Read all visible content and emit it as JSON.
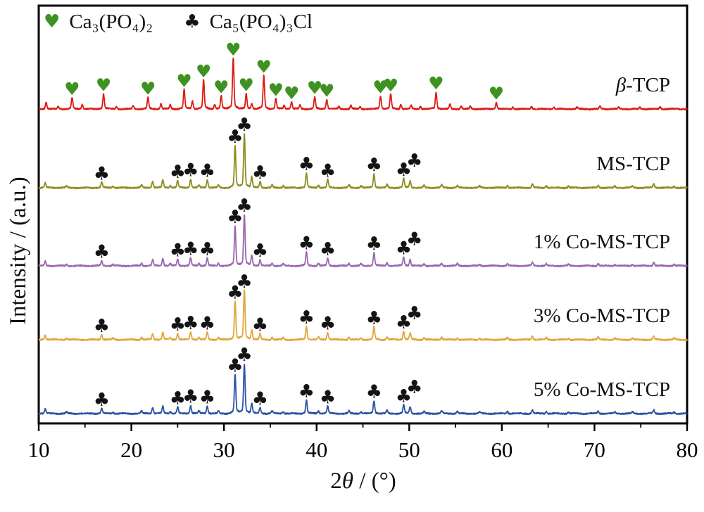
{
  "chart_data": {
    "type": "line",
    "subtype": "xrd-pattern-stack",
    "title": "",
    "xlabel": "2θ / (°)",
    "xlabel_parts": {
      "pre": "2",
      "theta": "θ",
      "post": " / (°)"
    },
    "ylabel": "Intensity / (a.u.)",
    "xlim": [
      10,
      80
    ],
    "x_ticks": [
      10,
      20,
      30,
      40,
      50,
      60,
      70,
      80
    ],
    "x_minor_tick_step": 5,
    "grid": false,
    "legend_position": "top-left-inside",
    "legend": [
      {
        "symbol": "heart",
        "symbol_char": "♥",
        "color": "#3e9222",
        "label": "Ca₃(PO₄)₂"
      },
      {
        "symbol": "club",
        "symbol_char": "♣",
        "color": "#141414",
        "label": "Ca₅(PO₄)₃Cl"
      }
    ],
    "peak_sets": {
      "beta_tcp": [
        [
          10.8,
          0.13
        ],
        [
          12.1,
          0.05
        ],
        [
          13.6,
          0.22
        ],
        [
          14.7,
          0.09
        ],
        [
          17.0,
          0.3
        ],
        [
          18.4,
          0.05
        ],
        [
          20.2,
          0.06
        ],
        [
          21.8,
          0.23
        ],
        [
          23.2,
          0.1
        ],
        [
          24.2,
          0.08
        ],
        [
          25.7,
          0.38
        ],
        [
          26.6,
          0.16
        ],
        [
          27.8,
          0.57
        ],
        [
          29.0,
          0.09
        ],
        [
          29.7,
          0.26
        ],
        [
          31.0,
          1.0
        ],
        [
          32.4,
          0.3
        ],
        [
          33.0,
          0.1
        ],
        [
          34.3,
          0.66
        ],
        [
          35.6,
          0.2
        ],
        [
          36.5,
          0.07
        ],
        [
          37.3,
          0.14
        ],
        [
          38.2,
          0.07
        ],
        [
          39.8,
          0.24
        ],
        [
          41.1,
          0.19
        ],
        [
          42.4,
          0.05
        ],
        [
          43.7,
          0.07
        ],
        [
          44.7,
          0.05
        ],
        [
          46.9,
          0.26
        ],
        [
          48.0,
          0.29
        ],
        [
          49.1,
          0.09
        ],
        [
          50.2,
          0.07
        ],
        [
          51.2,
          0.05
        ],
        [
          52.9,
          0.33
        ],
        [
          54.4,
          0.09
        ],
        [
          55.6,
          0.06
        ],
        [
          56.6,
          0.05
        ],
        [
          59.4,
          0.13
        ],
        [
          61.2,
          0.04
        ],
        [
          63.2,
          0.05
        ],
        [
          65.6,
          0.04
        ],
        [
          68.1,
          0.03
        ],
        [
          70.6,
          0.05
        ],
        [
          72.6,
          0.03
        ],
        [
          74.9,
          0.03
        ],
        [
          77.1,
          0.04
        ]
      ],
      "chlorapatite": [
        [
          10.7,
          0.09
        ],
        [
          13.0,
          0.03
        ],
        [
          16.8,
          0.1
        ],
        [
          18.0,
          0.03
        ],
        [
          21.1,
          0.05
        ],
        [
          22.3,
          0.12
        ],
        [
          23.4,
          0.15
        ],
        [
          24.2,
          0.04
        ],
        [
          25.0,
          0.13
        ],
        [
          26.4,
          0.16
        ],
        [
          27.3,
          0.05
        ],
        [
          28.2,
          0.15
        ],
        [
          29.4,
          0.05
        ],
        [
          31.2,
          0.78
        ],
        [
          32.2,
          1.0
        ],
        [
          33.0,
          0.2
        ],
        [
          33.9,
          0.12
        ],
        [
          35.2,
          0.05
        ],
        [
          36.4,
          0.04
        ],
        [
          38.9,
          0.27
        ],
        [
          40.2,
          0.05
        ],
        [
          41.2,
          0.15
        ],
        [
          43.5,
          0.05
        ],
        [
          44.8,
          0.04
        ],
        [
          46.2,
          0.26
        ],
        [
          47.6,
          0.06
        ],
        [
          49.4,
          0.17
        ],
        [
          50.1,
          0.13
        ],
        [
          51.6,
          0.04
        ],
        [
          53.5,
          0.05
        ],
        [
          55.2,
          0.04
        ],
        [
          57.6,
          0.03
        ],
        [
          60.6,
          0.04
        ],
        [
          63.3,
          0.07
        ],
        [
          64.8,
          0.04
        ],
        [
          67.2,
          0.03
        ],
        [
          70.4,
          0.05
        ],
        [
          72.2,
          0.03
        ],
        [
          74.1,
          0.03
        ],
        [
          76.4,
          0.07
        ],
        [
          78.6,
          0.03
        ]
      ]
    },
    "series": [
      {
        "name": "β-TCP",
        "label_italic": "β",
        "label_rest": "-TCP",
        "color": "#de1b14",
        "marker": "heart",
        "peak_set": "beta_tcp",
        "markers": [
          [
            13.6,
            0
          ],
          [
            17.0,
            0
          ],
          [
            21.8,
            0
          ],
          [
            25.7,
            0
          ],
          [
            27.8,
            0
          ],
          [
            29.7,
            0
          ],
          [
            31.0,
            0
          ],
          [
            32.4,
            0
          ],
          [
            34.3,
            0
          ],
          [
            35.6,
            0
          ],
          [
            37.3,
            0
          ],
          [
            39.8,
            0
          ],
          [
            41.1,
            0
          ],
          [
            46.9,
            0
          ],
          [
            48.0,
            0
          ],
          [
            52.9,
            0
          ],
          [
            59.4,
            0
          ]
        ]
      },
      {
        "name": "MS-TCP",
        "label_italic": "",
        "label_rest": "MS-TCP",
        "color": "#8f8d1f",
        "marker": "club",
        "peak_set": "chlorapatite",
        "markers": [
          [
            16.8,
            0
          ],
          [
            25.0,
            0
          ],
          [
            26.4,
            0
          ],
          [
            28.2,
            0
          ],
          [
            31.2,
            0
          ],
          [
            32.2,
            0
          ],
          [
            33.9,
            0
          ],
          [
            38.9,
            0
          ],
          [
            41.2,
            0
          ],
          [
            46.2,
            0
          ],
          [
            49.4,
            0
          ],
          [
            50.1,
            16
          ]
        ]
      },
      {
        "name": "1% Co-MS-TCP",
        "label_italic": "",
        "label_rest": "1% Co-MS-TCP",
        "color": "#9a68ae",
        "marker": "club",
        "peak_set": "chlorapatite",
        "markers": [
          [
            16.8,
            0
          ],
          [
            25.0,
            0
          ],
          [
            26.4,
            0
          ],
          [
            28.2,
            0
          ],
          [
            31.2,
            0
          ],
          [
            32.2,
            0
          ],
          [
            33.9,
            0
          ],
          [
            38.9,
            0
          ],
          [
            41.2,
            0
          ],
          [
            46.2,
            0
          ],
          [
            49.4,
            0
          ],
          [
            50.1,
            16
          ]
        ]
      },
      {
        "name": "3% Co-MS-TCP",
        "label_italic": "",
        "label_rest": "3% Co-MS-TCP",
        "color": "#e2a63d",
        "marker": "club",
        "peak_set": "chlorapatite",
        "markers": [
          [
            16.8,
            0
          ],
          [
            25.0,
            0
          ],
          [
            26.4,
            0
          ],
          [
            28.2,
            0
          ],
          [
            31.2,
            0
          ],
          [
            32.2,
            0
          ],
          [
            33.9,
            0
          ],
          [
            38.9,
            0
          ],
          [
            41.2,
            0
          ],
          [
            46.2,
            0
          ],
          [
            49.4,
            0
          ],
          [
            50.1,
            16
          ]
        ]
      },
      {
        "name": "5% Co-MS-TCP",
        "label_italic": "",
        "label_rest": "5% Co-MS-TCP",
        "color": "#2b55a7",
        "marker": "club",
        "peak_set": "chlorapatite",
        "markers": [
          [
            16.8,
            0
          ],
          [
            25.0,
            0
          ],
          [
            26.4,
            0
          ],
          [
            28.2,
            0
          ],
          [
            31.2,
            0
          ],
          [
            32.2,
            0
          ],
          [
            33.9,
            0
          ],
          [
            38.9,
            0
          ],
          [
            41.2,
            0
          ],
          [
            46.2,
            0
          ],
          [
            49.4,
            0
          ],
          [
            50.1,
            16
          ]
        ]
      }
    ]
  }
}
